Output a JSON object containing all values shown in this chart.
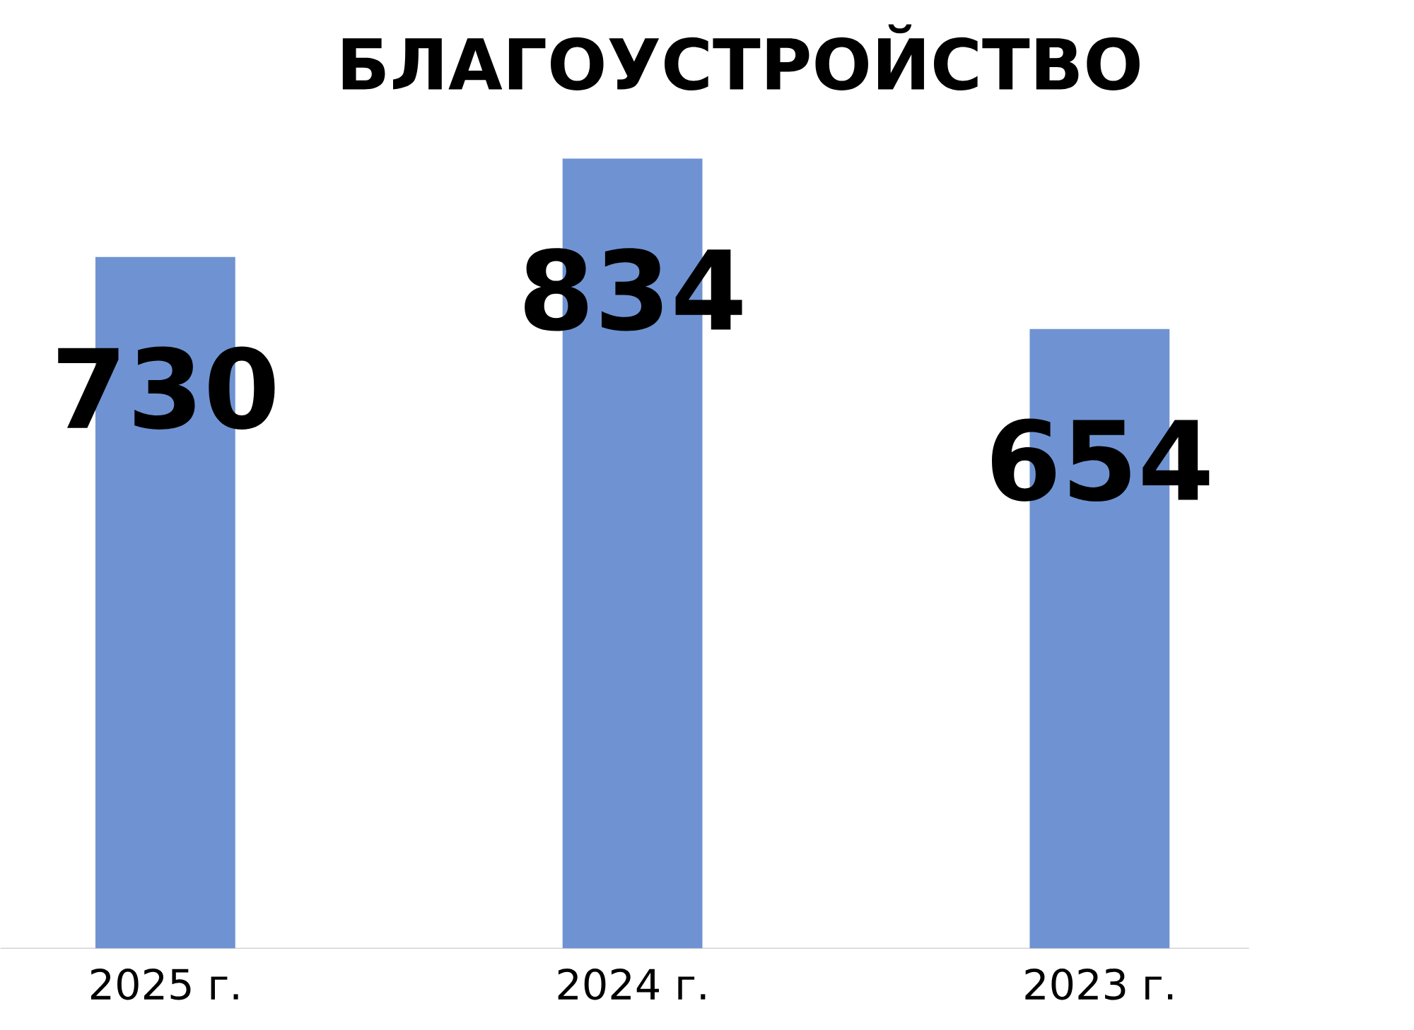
{
  "chart_data": {
    "type": "bar",
    "title": "БЛАГОУСТРОЙСТВО",
    "categories": [
      "2025 г.",
      "2024 г.",
      "2023 г."
    ],
    "values": [
      730,
      834,
      654
    ],
    "color": "#6f93d2",
    "data_labels": true
  }
}
